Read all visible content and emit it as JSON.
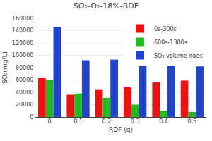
{
  "chart_data": {
    "type": "bar",
    "title": "SO₂-O₂-18%-RDF",
    "xlabel": "RDF (g)",
    "ylabel": "SO₂(mg/L)",
    "categories": [
      "0",
      "0.1",
      "0.2",
      "0.3",
      "0.4",
      "0.5"
    ],
    "series": [
      {
        "name": "0s-300s",
        "color": "#ee1111",
        "values": [
          63000,
          36000,
          45000,
          48000,
          56000,
          59000
        ]
      },
      {
        "name": "600s-1300s",
        "color": "#22bb22",
        "values": [
          60000,
          38000,
          31000,
          20000,
          10000,
          8000
        ]
      },
      {
        "name": "SO₂ volume does",
        "color": "#2244cc",
        "values": [
          146000,
          92000,
          93000,
          83000,
          83500,
          82000
        ]
      }
    ],
    "ylim": [
      0,
      160000
    ],
    "yticks": [
      0,
      20000,
      40000,
      60000,
      80000,
      100000,
      120000,
      140000,
      160000
    ],
    "legend": "upper right"
  }
}
